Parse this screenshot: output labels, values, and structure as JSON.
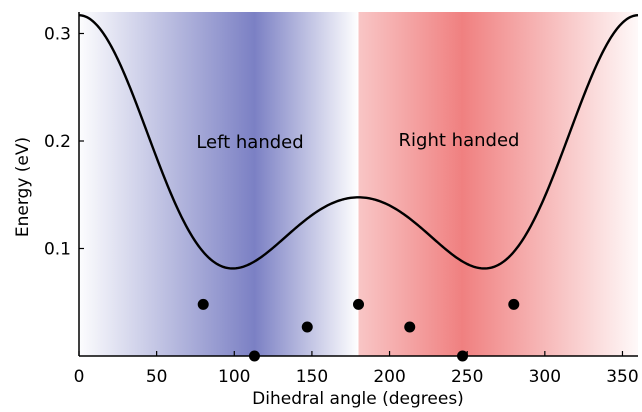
{
  "chart_data": {
    "type": "line",
    "title": "",
    "xlabel": "Dihedral angle (degrees)",
    "ylabel": "Energy (eV)",
    "xlim": [
      0,
      360
    ],
    "ylim": [
      0,
      0.32
    ],
    "xticks": [
      0,
      50,
      100,
      150,
      200,
      250,
      300,
      350
    ],
    "yticks": [
      0.1,
      0.2,
      0.3
    ],
    "xtick_labels": [
      "0",
      "50",
      "100",
      "150",
      "200",
      "250",
      "300",
      "350"
    ],
    "ytick_labels": [
      "0.1",
      "0.2",
      "0.3"
    ],
    "grid": false,
    "regions": [
      {
        "label": "Left handed",
        "x_range": [
          0,
          180
        ],
        "center": 113,
        "color": "#7b80c4"
      },
      {
        "label": "Right handed",
        "x_range": [
          180,
          360
        ],
        "center": 247,
        "color": "#f08080"
      }
    ],
    "curve": {
      "model": "energy = a*(1+cos(x)) + b*(1+cos(2x)) + c*(1+cos(3x))",
      "a": 0.0743,
      "b": 0.0738,
      "c": 0.0104,
      "color": "#000000"
    },
    "series": [
      {
        "x": [
          80,
          113,
          147,
          180,
          213,
          247,
          280
        ],
        "y": [
          0.048,
          0.0,
          0.027,
          0.048,
          0.027,
          0.0,
          0.048
        ],
        "marker": "circle",
        "color": "#000000"
      }
    ]
  }
}
